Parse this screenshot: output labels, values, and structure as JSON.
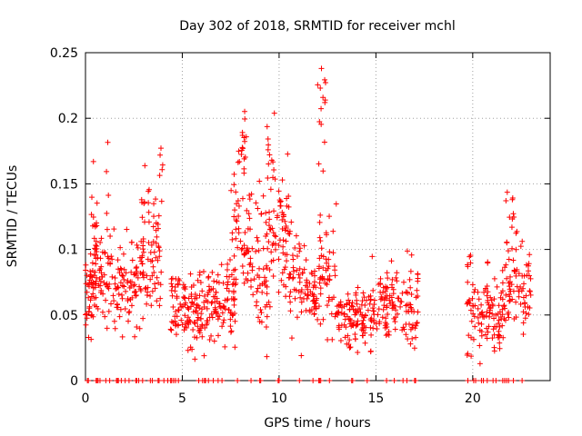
{
  "chart_data": {
    "type": "scatter",
    "title": "Day 302 of 2018, SRMTID for receiver mchl",
    "xlabel": "GPS time / hours",
    "ylabel": "SRMTID / TECUs",
    "xlim": [
      0,
      24
    ],
    "ylim": [
      0,
      0.25
    ],
    "x_ticks": [
      0,
      5,
      10,
      15,
      20
    ],
    "y_ticks": [
      0,
      0.05,
      0.1,
      0.15,
      0.2,
      0.25
    ],
    "x_tick_labels": [
      "0",
      "5",
      "10",
      "15",
      "20"
    ],
    "y_tick_labels": [
      "0",
      "0.05",
      "0.1",
      "0.15",
      "0.2",
      "0.25"
    ],
    "grid": true,
    "marker": "+",
    "color": "#ff0000",
    "series": [
      {
        "name": "SRMTID",
        "generated_from_segments": true,
        "segments": [
          {
            "x0": 0.0,
            "x1": 0.5,
            "base": 0.07,
            "spread": 0.03,
            "n": 45
          },
          {
            "x0": 0.3,
            "x1": 0.6,
            "base": 0.12,
            "spread": 0.04,
            "n": 14
          },
          {
            "x0": 0.5,
            "x1": 1.5,
            "base": 0.075,
            "spread": 0.03,
            "n": 60
          },
          {
            "x0": 1.0,
            "x1": 1.2,
            "base": 0.15,
            "spread": 0.03,
            "n": 6
          },
          {
            "x0": 1.5,
            "x1": 2.5,
            "base": 0.072,
            "spread": 0.03,
            "n": 55
          },
          {
            "x0": 2.5,
            "x1": 3.5,
            "base": 0.085,
            "spread": 0.035,
            "n": 60
          },
          {
            "x0": 2.9,
            "x1": 3.3,
            "base": 0.14,
            "spread": 0.03,
            "n": 10
          },
          {
            "x0": 3.5,
            "x1": 4.0,
            "base": 0.1,
            "spread": 0.04,
            "n": 30
          },
          {
            "x0": 3.8,
            "x1": 4.0,
            "base": 0.16,
            "spread": 0.015,
            "n": 5
          },
          {
            "x0": 4.4,
            "x1": 5.0,
            "base": 0.06,
            "spread": 0.025,
            "n": 35
          },
          {
            "x0": 5.0,
            "x1": 6.0,
            "base": 0.05,
            "spread": 0.025,
            "n": 70
          },
          {
            "x0": 6.0,
            "x1": 7.0,
            "base": 0.06,
            "spread": 0.025,
            "n": 60
          },
          {
            "x0": 7.0,
            "x1": 7.8,
            "base": 0.06,
            "spread": 0.025,
            "n": 45
          },
          {
            "x0": 7.5,
            "x1": 8.5,
            "base": 0.11,
            "spread": 0.04,
            "n": 55
          },
          {
            "x0": 7.9,
            "x1": 8.4,
            "base": 0.175,
            "spread": 0.025,
            "n": 16
          },
          {
            "x0": 8.5,
            "x1": 9.5,
            "base": 0.09,
            "spread": 0.04,
            "n": 60
          },
          {
            "x0": 9.3,
            "x1": 9.8,
            "base": 0.17,
            "spread": 0.04,
            "n": 16
          },
          {
            "x0": 9.5,
            "x1": 10.5,
            "base": 0.11,
            "spread": 0.035,
            "n": 60
          },
          {
            "x0": 10.5,
            "x1": 11.5,
            "base": 0.08,
            "spread": 0.035,
            "n": 55
          },
          {
            "x0": 11.5,
            "x1": 12.0,
            "base": 0.06,
            "spread": 0.025,
            "n": 30
          },
          {
            "x0": 11.9,
            "x1": 12.4,
            "base": 0.2,
            "spread": 0.045,
            "n": 14
          },
          {
            "x0": 12.0,
            "x1": 13.0,
            "base": 0.08,
            "spread": 0.04,
            "n": 55
          },
          {
            "x0": 13.0,
            "x1": 14.0,
            "base": 0.045,
            "spread": 0.02,
            "n": 60
          },
          {
            "x0": 14.0,
            "x1": 15.0,
            "base": 0.05,
            "spread": 0.022,
            "n": 60
          },
          {
            "x0": 15.0,
            "x1": 16.0,
            "base": 0.06,
            "spread": 0.025,
            "n": 60
          },
          {
            "x0": 16.0,
            "x1": 17.2,
            "base": 0.06,
            "spread": 0.028,
            "n": 60
          },
          {
            "x0": 19.7,
            "x1": 20.5,
            "base": 0.05,
            "spread": 0.025,
            "n": 40
          },
          {
            "x0": 19.7,
            "x1": 19.9,
            "base": 0.095,
            "spread": 0.01,
            "n": 5
          },
          {
            "x0": 20.5,
            "x1": 21.5,
            "base": 0.05,
            "spread": 0.025,
            "n": 60
          },
          {
            "x0": 21.5,
            "x1": 22.5,
            "base": 0.07,
            "spread": 0.03,
            "n": 55
          },
          {
            "x0": 21.7,
            "x1": 22.3,
            "base": 0.12,
            "spread": 0.02,
            "n": 12
          },
          {
            "x0": 22.5,
            "x1": 23.0,
            "base": 0.07,
            "spread": 0.025,
            "n": 30
          }
        ],
        "zero_points_x": [
          0.1,
          0.15,
          0.55,
          0.6,
          0.65,
          0.75,
          1.05,
          1.25,
          1.6,
          1.65,
          1.7,
          1.85,
          2.05,
          2.25,
          2.6,
          2.65,
          2.75,
          2.95,
          3.35,
          3.45,
          3.75,
          3.8,
          4.05,
          4.25,
          4.4,
          4.45,
          4.55,
          4.65,
          4.8,
          5.85,
          6.05,
          6.15,
          6.2,
          6.35,
          6.6,
          6.85,
          7.05,
          7.85,
          8.55,
          9.0,
          9.05,
          9.95,
          10.0,
          11.05,
          11.75,
          12.05,
          12.1,
          12.15,
          12.6,
          13.75,
          13.8,
          14.55,
          15.55,
          15.95,
          16.4,
          16.6,
          17.0,
          17.05,
          19.75,
          20.05,
          20.15,
          20.45,
          20.55,
          20.75,
          21.05,
          21.2,
          21.55,
          21.65,
          21.75,
          21.85,
          22.1,
          22.55
        ]
      }
    ]
  }
}
